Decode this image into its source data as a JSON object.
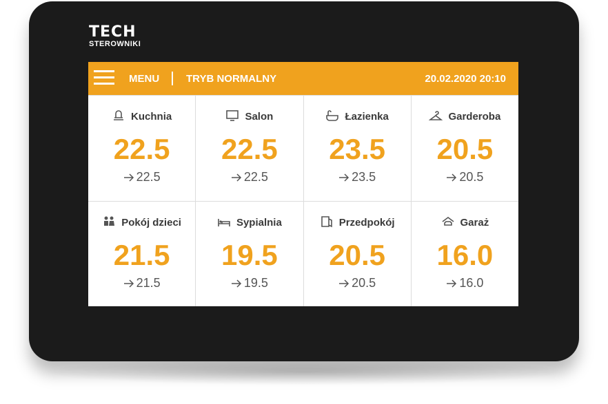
{
  "brand": {
    "name": "TECH",
    "subtitle": "STEROWNIKI"
  },
  "header": {
    "menu": "MENU",
    "mode": "TRYB NORMALNY",
    "datetime": "20.02.2020 20:10"
  },
  "tiles": [
    {
      "name": "Kuchnia",
      "temperature": "22.5",
      "setpoint": "22.5"
    },
    {
      "name": "Salon",
      "temperature": "22.5",
      "setpoint": "22.5"
    },
    {
      "name": "Łazienka",
      "temperature": "23.5",
      "setpoint": "23.5"
    },
    {
      "name": "Garderoba",
      "temperature": "20.5",
      "setpoint": "20.5"
    },
    {
      "name": "Pokój dzieci",
      "temperature": "21.5",
      "setpoint": "21.5"
    },
    {
      "name": "Sypialnia",
      "temperature": "19.5",
      "setpoint": "19.5"
    },
    {
      "name": "Przedpokój",
      "temperature": "20.5",
      "setpoint": "20.5"
    },
    {
      "name": "Garaż",
      "temperature": "16.0",
      "setpoint": "16.0"
    }
  ]
}
